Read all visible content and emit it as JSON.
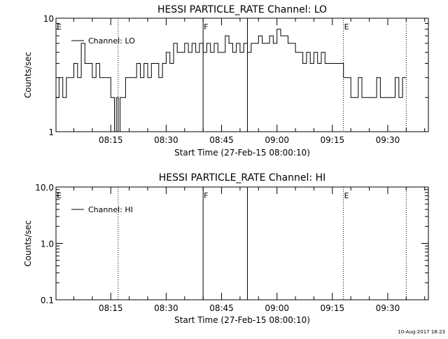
{
  "chart_data": [
    {
      "type": "line",
      "title": "HESSI PARTICLE_RATE Channel: LO",
      "ylabel": "Counts/sec",
      "xlabel": "Start Time (27-Feb-15 08:00:10)",
      "y_scale": "log",
      "ylim": [
        1,
        10
      ],
      "ytick_labels": [
        "1",
        "10"
      ],
      "xlim": [
        "08:00:10",
        "09:41:00"
      ],
      "xtick_labels": [
        "08:15",
        "08:30",
        "08:45",
        "09:00",
        "09:15",
        "09:30"
      ],
      "legend": "Channel: LO",
      "legend_position": "top-left",
      "markers": [
        {
          "time": "08:00:10",
          "label": "E",
          "style": "solid"
        },
        {
          "time": "08:17",
          "label": "",
          "style": "dotted"
        },
        {
          "time": "08:40",
          "label": "F",
          "style": "solid"
        },
        {
          "time": "08:52",
          "label": "",
          "style": "solid"
        },
        {
          "time": "09:18",
          "label": "E",
          "style": "dotted"
        },
        {
          "time": "09:35",
          "label": "",
          "style": "dotted"
        }
      ],
      "series": [
        {
          "name": "Channel: LO",
          "points": [
            [
              "08:00:10",
              2
            ],
            [
              "08:01",
              3
            ],
            [
              "08:02",
              2
            ],
            [
              "08:03",
              3
            ],
            [
              "08:04",
              3
            ],
            [
              "08:05",
              4
            ],
            [
              "08:06",
              3
            ],
            [
              "08:07",
              6
            ],
            [
              "08:08",
              4
            ],
            [
              "08:09",
              4
            ],
            [
              "08:10",
              3
            ],
            [
              "08:11",
              4
            ],
            [
              "08:12",
              3
            ],
            [
              "08:13",
              3
            ],
            [
              "08:14",
              3
            ],
            [
              "08:15",
              2
            ],
            [
              "08:16",
              1
            ],
            [
              "08:16:30",
              2
            ],
            [
              "08:17",
              1
            ],
            [
              "08:17:30",
              2
            ],
            [
              "08:18",
              2
            ],
            [
              "08:19",
              3
            ],
            [
              "08:20",
              3
            ],
            [
              "08:21",
              3
            ],
            [
              "08:22",
              4
            ],
            [
              "08:23",
              3
            ],
            [
              "08:24",
              4
            ],
            [
              "08:25",
              3
            ],
            [
              "08:26",
              4
            ],
            [
              "08:27",
              4
            ],
            [
              "08:28",
              3
            ],
            [
              "08:29",
              4
            ],
            [
              "08:30",
              5
            ],
            [
              "08:31",
              4
            ],
            [
              "08:32",
              6
            ],
            [
              "08:33",
              5
            ],
            [
              "08:34",
              5
            ],
            [
              "08:35",
              6
            ],
            [
              "08:36",
              5
            ],
            [
              "08:37",
              6
            ],
            [
              "08:38",
              5
            ],
            [
              "08:39",
              6
            ],
            [
              "08:40",
              5
            ],
            [
              "08:41",
              6
            ],
            [
              "08:42",
              5
            ],
            [
              "08:43",
              6
            ],
            [
              "08:44",
              5
            ],
            [
              "08:45",
              5
            ],
            [
              "08:46",
              7
            ],
            [
              "08:47",
              6
            ],
            [
              "08:48",
              5
            ],
            [
              "08:49",
              6
            ],
            [
              "08:50",
              5
            ],
            [
              "08:51",
              6
            ],
            [
              "08:52",
              5
            ],
            [
              "08:53",
              6
            ],
            [
              "08:54",
              6
            ],
            [
              "08:55",
              7
            ],
            [
              "08:56",
              6
            ],
            [
              "08:57",
              6
            ],
            [
              "08:58",
              7
            ],
            [
              "08:59",
              6
            ],
            [
              "09:00",
              8
            ],
            [
              "09:01",
              7
            ],
            [
              "09:02",
              7
            ],
            [
              "09:03",
              6
            ],
            [
              "09:04",
              6
            ],
            [
              "09:05",
              5
            ],
            [
              "09:06",
              5
            ],
            [
              "09:07",
              4
            ],
            [
              "09:08",
              5
            ],
            [
              "09:09",
              4
            ],
            [
              "09:10",
              5
            ],
            [
              "09:11",
              4
            ],
            [
              "09:12",
              5
            ],
            [
              "09:13",
              4
            ],
            [
              "09:14",
              4
            ],
            [
              "09:15",
              4
            ],
            [
              "09:16",
              4
            ],
            [
              "09:17",
              4
            ],
            [
              "09:18",
              3
            ],
            [
              "09:19",
              3
            ],
            [
              "09:20",
              2
            ],
            [
              "09:21",
              2
            ],
            [
              "09:22",
              3
            ],
            [
              "09:23",
              2
            ],
            [
              "09:24",
              2
            ],
            [
              "09:25",
              2
            ],
            [
              "09:26",
              2
            ],
            [
              "09:27",
              3
            ],
            [
              "09:28",
              2
            ],
            [
              "09:29",
              2
            ],
            [
              "09:30",
              2
            ],
            [
              "09:31",
              2
            ],
            [
              "09:32",
              3
            ],
            [
              "09:33",
              2
            ],
            [
              "09:34",
              3
            ],
            [
              "09:35",
              3
            ]
          ]
        }
      ]
    },
    {
      "type": "line",
      "title": "HESSI PARTICLE_RATE Channel: HI",
      "ylabel": "Counts/sec",
      "xlabel": "Start Time (27-Feb-15 08:00:10)",
      "y_scale": "log",
      "ylim": [
        0.1,
        10
      ],
      "ytick_labels": [
        "0.1",
        "1.0",
        "10.0"
      ],
      "xlim": [
        "08:00:10",
        "09:41:00"
      ],
      "xtick_labels": [
        "08:15",
        "08:30",
        "08:45",
        "09:00",
        "09:15",
        "09:30"
      ],
      "legend": "Channel: HI",
      "legend_position": "top-left",
      "markers": [
        {
          "time": "08:00:10",
          "label": "E",
          "style": "solid"
        },
        {
          "time": "08:17",
          "label": "",
          "style": "dotted"
        },
        {
          "time": "08:40",
          "label": "F",
          "style": "solid"
        },
        {
          "time": "08:52",
          "label": "",
          "style": "solid"
        },
        {
          "time": "09:18",
          "label": "E",
          "style": "dotted"
        },
        {
          "time": "09:35",
          "label": "",
          "style": "dotted"
        }
      ],
      "series": [
        {
          "name": "Channel: HI",
          "points": []
        }
      ]
    }
  ],
  "footer": "10-Aug-2017 18:23"
}
